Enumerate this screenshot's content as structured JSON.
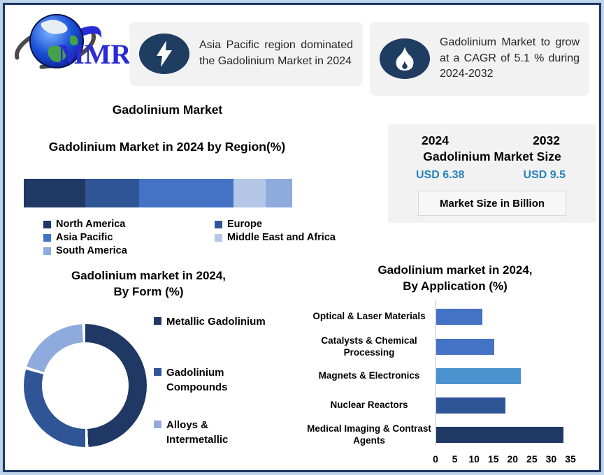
{
  "logo": {
    "text": "MMR"
  },
  "callouts": [
    {
      "icon": "lightning-icon",
      "text": "Asia Pacific region dominated the Gadolinium Market in 2024"
    },
    {
      "icon": "flame-icon",
      "text": "Gadolinium Market to grow at a CAGR of 5.1 % during 2024-2032"
    }
  ],
  "titles": {
    "main": "Gadolinium Market"
  },
  "market_size_box": {
    "year_start": "2024",
    "year_end": "2032",
    "label": "Gadolinium Market Size",
    "value_start": "USD 6.38",
    "value_end": "USD 9.5",
    "unit_note": "Market Size in Billion"
  },
  "colors": {
    "navy": "#1F3864",
    "blue_dark": "#2F5597",
    "blue": "#4472C4",
    "blue_light": "#8FAADC",
    "blue_pale": "#B4C7E7",
    "sky": "#4A93CE",
    "value_teal": "#2783BD",
    "box_gray": "#F2F2F2",
    "frame_border": "#1F3864"
  },
  "chart_data": [
    {
      "type": "bar",
      "subtype": "stacked-horizontal",
      "title": "Gadolinium Market in 2024 by Region(%)",
      "unit": "%",
      "legend_position": "bottom",
      "series": [
        {
          "name": "North America",
          "value": 23,
          "color": "#1F3864"
        },
        {
          "name": "Europe",
          "value": 20,
          "color": "#2F5597"
        },
        {
          "name": "Asia Pacific",
          "value": 35,
          "color": "#4472C4"
        },
        {
          "name": "Middle East and Africa",
          "value": 12,
          "color": "#B4C7E7"
        },
        {
          "name": "South America",
          "value": 10,
          "color": "#8FAADC"
        }
      ]
    },
    {
      "type": "pie",
      "subtype": "donut",
      "title_line1": "Gadolinium market in 2024,",
      "title_line2": "By Form (%)",
      "unit": "%",
      "legend_position": "right",
      "slices": [
        {
          "name": "Metallic Gadolinium",
          "value": 50,
          "color": "#1F3864"
        },
        {
          "name": "Gadolinium Compounds",
          "value": 30,
          "color": "#2F5597"
        },
        {
          "name": "Alloys & Intermetallic",
          "value": 20,
          "color": "#8FAADC"
        }
      ]
    },
    {
      "type": "bar",
      "subtype": "horizontal",
      "title_line1": "Gadolinium market in 2024,",
      "title_line2": "By Application (%)",
      "unit": "%",
      "categories": [
        "Optical & Laser Materials",
        "Catalysts & Chemical Processing",
        "Magnets & Electronics",
        "Nuclear Reactors",
        "Medical Imaging & Contrast Agents"
      ],
      "values": [
        12,
        15,
        22,
        18,
        33
      ],
      "bar_colors": [
        "#4472C4",
        "#4472C4",
        "#4A93CE",
        "#2F5597",
        "#1F3864"
      ],
      "xticks": [
        0,
        5,
        10,
        15,
        20,
        25,
        30,
        35
      ],
      "xlim": [
        0,
        35
      ],
      "grid": false
    }
  ]
}
